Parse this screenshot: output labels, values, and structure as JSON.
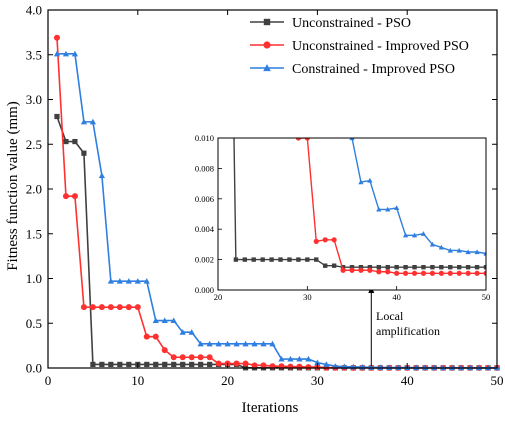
{
  "chart_data": [
    {
      "type": "line",
      "xlabel": "Iterations",
      "ylabel": "Fitness function value (mm)",
      "xlim": [
        0,
        50
      ],
      "ylim": [
        0,
        4.0
      ],
      "xticks": [
        "0",
        "10",
        "20",
        "30",
        "40",
        "50"
      ],
      "yticks": [
        "0.0",
        "0.5",
        "1.0",
        "1.5",
        "2.0",
        "2.5",
        "3.0",
        "3.5",
        "4.0"
      ],
      "legend_position": "top-right",
      "grid": false,
      "series": [
        {
          "name": "Unconstrained - PSO",
          "color": "#404040",
          "marker": "square",
          "x": [
            1,
            2,
            3,
            4,
            5,
            6,
            7,
            8,
            9,
            10,
            11,
            12,
            13,
            14,
            15,
            16,
            17,
            18,
            19,
            20,
            21,
            22,
            23,
            24,
            25,
            26,
            27,
            28,
            29,
            30,
            31,
            32,
            33,
            34,
            35,
            36,
            37,
            38,
            39,
            40,
            41,
            42,
            43,
            44,
            45,
            46,
            47,
            48,
            49,
            50
          ],
          "y": [
            2.81,
            2.53,
            2.53,
            2.4,
            0.04,
            0.04,
            0.04,
            0.04,
            0.04,
            0.04,
            0.04,
            0.04,
            0.04,
            0.04,
            0.04,
            0.04,
            0.04,
            0.04,
            0.04,
            0.04,
            0.04,
            0.002,
            0.002,
            0.002,
            0.002,
            0.002,
            0.002,
            0.002,
            0.002,
            0.002,
            0.002,
            0.0016,
            0.0016,
            0.0015,
            0.0015,
            0.0015,
            0.0015,
            0.0015,
            0.0015,
            0.0015,
            0.0015,
            0.0015,
            0.0015,
            0.0015,
            0.0015,
            0.0015,
            0.0015,
            0.0015,
            0.0015,
            0.0015
          ]
        },
        {
          "name": "Unconstrained - Improved PSO",
          "color": "#ff3030",
          "marker": "circle",
          "x": [
            1,
            2,
            3,
            4,
            5,
            6,
            7,
            8,
            9,
            10,
            11,
            12,
            13,
            14,
            15,
            16,
            17,
            18,
            19,
            20,
            21,
            22,
            23,
            24,
            25,
            26,
            27,
            28,
            29,
            30,
            31,
            32,
            33,
            34,
            35,
            36,
            37,
            38,
            39,
            40,
            41,
            42,
            43,
            44,
            45,
            46,
            47,
            48,
            49,
            50
          ],
          "y": [
            3.69,
            1.92,
            1.92,
            0.68,
            0.68,
            0.68,
            0.68,
            0.68,
            0.68,
            0.68,
            0.35,
            0.35,
            0.2,
            0.12,
            0.12,
            0.12,
            0.12,
            0.12,
            0.05,
            0.05,
            0.05,
            0.05,
            0.03,
            0.03,
            0.02,
            0.02,
            0.015,
            0.015,
            0.01,
            0.01,
            0.0032,
            0.0033,
            0.0033,
            0.0013,
            0.0013,
            0.0013,
            0.0013,
            0.0012,
            0.0012,
            0.0011,
            0.0011,
            0.0011,
            0.0011,
            0.0011,
            0.0011,
            0.0011,
            0.0011,
            0.0011,
            0.0011,
            0.0011
          ]
        },
        {
          "name": "Constrained - Improved PSO",
          "color": "#2f7fe0",
          "marker": "triangle",
          "x": [
            1,
            2,
            3,
            4,
            5,
            6,
            7,
            8,
            9,
            10,
            11,
            12,
            13,
            14,
            15,
            16,
            17,
            18,
            19,
            20,
            21,
            22,
            23,
            24,
            25,
            26,
            27,
            28,
            29,
            30,
            31,
            32,
            33,
            34,
            35,
            36,
            37,
            38,
            39,
            40,
            41,
            42,
            43,
            44,
            45,
            46,
            47,
            48,
            49,
            50
          ],
          "y": [
            3.51,
            3.51,
            3.51,
            2.75,
            2.75,
            2.15,
            0.97,
            0.97,
            0.97,
            0.97,
            0.97,
            0.53,
            0.53,
            0.53,
            0.4,
            0.4,
            0.27,
            0.27,
            0.27,
            0.27,
            0.27,
            0.27,
            0.27,
            0.27,
            0.27,
            0.1,
            0.1,
            0.1,
            0.1,
            0.06,
            0.04,
            0.02,
            0.015,
            0.012,
            0.01,
            0.0071,
            0.0072,
            0.0053,
            0.0053,
            0.0054,
            0.0036,
            0.0036,
            0.0037,
            0.003,
            0.0028,
            0.0026,
            0.0026,
            0.0025,
            0.0025,
            0.0024
          ]
        }
      ]
    },
    {
      "type": "line",
      "role": "inset",
      "xlim": [
        20,
        50
      ],
      "ylim": [
        0,
        0.01
      ],
      "xticks": [
        "20",
        "30",
        "40",
        "50"
      ],
      "yticks": [
        "0.000",
        "0.002",
        "0.004",
        "0.006",
        "0.008",
        "0.010"
      ],
      "annotation": [
        "Local",
        "amplification"
      ]
    }
  ]
}
